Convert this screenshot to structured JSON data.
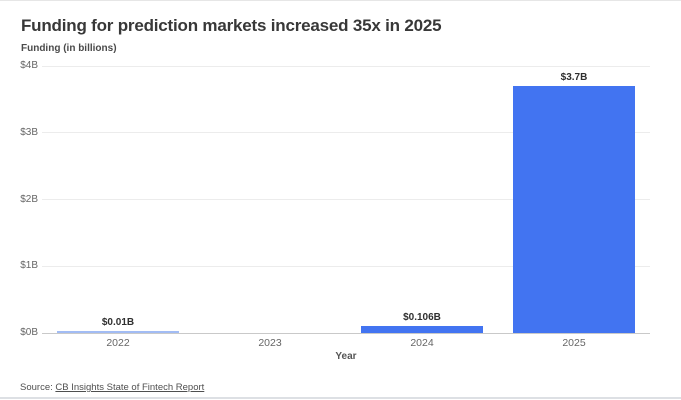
{
  "title": "Funding for prediction markets increased 35x in 2025",
  "y_axis_title": "Funding (in billions)",
  "x_axis_title": "Year",
  "source": {
    "prefix": "Source: ",
    "link_text": "CB Insights State of Fintech Report"
  },
  "colors": {
    "bar": "#4274F1",
    "bar_tiny": "#A2BCF4",
    "grid": "#ececec",
    "baseline": "#c9c9c9"
  },
  "chart_data": {
    "type": "bar",
    "title": "Funding for prediction markets increased 35x in 2025",
    "categories": [
      "2022",
      "2023",
      "2024",
      "2025"
    ],
    "values": [
      0.01,
      0,
      0.106,
      3.7
    ],
    "bar_labels": [
      "$0.01B",
      "",
      "$0.106B",
      "$3.7B"
    ],
    "xlabel": "Year",
    "ylabel": "Funding (in billions)",
    "ylim": [
      0,
      4
    ],
    "yticks": [
      0,
      1,
      2,
      3,
      4
    ],
    "ytick_labels": [
      "$0B",
      "$1B",
      "$2B",
      "$3B",
      "$4B"
    ],
    "grid": "horizontal",
    "legend": "none"
  }
}
